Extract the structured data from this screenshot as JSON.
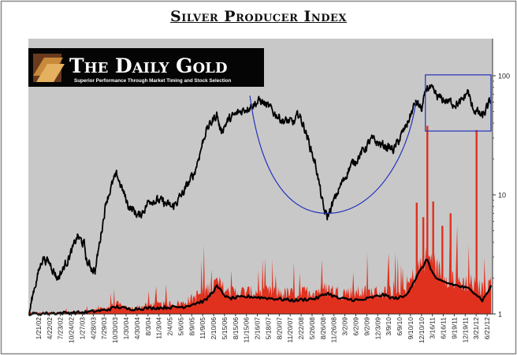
{
  "chart_data": {
    "type": "line",
    "title": "Silver Producer Index",
    "y_scale": "log",
    "ylim": [
      1,
      100
    ],
    "y_ticks": [
      {
        "value": 100,
        "label": "100"
      },
      {
        "value": 10,
        "label": "10"
      },
      {
        "value": 1,
        "label": "1"
      }
    ],
    "x_tick_labels": [
      "1/21/02",
      "4/22/02",
      "7/23/02",
      "10/24/02",
      "1/27/03",
      "4/28/03",
      "7/29/03",
      "10/30/03",
      "1/30/04",
      "4/30/04",
      "8/3/04",
      "11/3/04",
      "2/4/05",
      "5/6/05",
      "8/9/05",
      "11/9/05",
      "2/10/06",
      "5/15/06",
      "8/15/06",
      "11/15/06",
      "2/16/07",
      "5/18/07",
      "8/20/07",
      "11/20/07",
      "2/22/08",
      "5/26/08",
      "8/26/08",
      "11/26/08",
      "3/2/09",
      "6/2/09",
      "9/2/09",
      "12/3/09",
      "3/9/10",
      "6/9/10",
      "9/10/10",
      "12/10/10",
      "3/16/11",
      "6/16/11",
      "9/19/11",
      "12/19/11",
      "3/21/12",
      "6/21/12"
    ],
    "x_range": [
      "1/21/02",
      "8/31/12"
    ],
    "series": [
      {
        "name": "",
        "color": "#000000",
        "style": "price",
        "points": [
          [
            "1/21/02",
            1.0
          ],
          [
            "3/1/02",
            1.6
          ],
          [
            "5/15/02",
            3.0
          ],
          [
            "7/23/02",
            2.6
          ],
          [
            "9/15/02",
            2.0
          ],
          [
            "10/24/02",
            2.3
          ],
          [
            "1/27/03",
            3.6
          ],
          [
            "3/1/03",
            4.5
          ],
          [
            "4/28/03",
            3.8
          ],
          [
            "5/20/03",
            2.7
          ],
          [
            "7/29/03",
            2.3
          ],
          [
            "10/30/03",
            9.0
          ],
          [
            "1/5/04",
            13.5
          ],
          [
            "1/30/04",
            14.5
          ],
          [
            "4/30/04",
            8.2
          ],
          [
            "8/3/04",
            6.6
          ],
          [
            "11/3/04",
            9.2
          ],
          [
            "2/4/05",
            8.8
          ],
          [
            "5/6/05",
            7.8
          ],
          [
            "8/9/05",
            10.5
          ],
          [
            "11/9/05",
            15.5
          ],
          [
            "2/10/06",
            34.0
          ],
          [
            "5/15/06",
            48.0
          ],
          [
            "6/15/06",
            34.0
          ],
          [
            "8/15/06",
            42.0
          ],
          [
            "11/15/06",
            49.0
          ],
          [
            "2/16/07",
            56.0
          ],
          [
            "5/18/07",
            62.0
          ],
          [
            "8/20/07",
            51.0
          ],
          [
            "11/20/07",
            42.0
          ],
          [
            "2/22/08",
            40.0
          ],
          [
            "4/1/08",
            48.0
          ],
          [
            "5/26/08",
            35.0
          ],
          [
            "8/26/08",
            17.0
          ],
          [
            "10/27/08",
            7.5
          ],
          [
            "11/26/08",
            6.5
          ],
          [
            "3/2/09",
            11.0
          ],
          [
            "6/2/09",
            17.0
          ],
          [
            "9/2/09",
            22.0
          ],
          [
            "12/3/09",
            29.0
          ],
          [
            "3/9/10",
            26.0
          ],
          [
            "6/9/10",
            24.0
          ],
          [
            "9/10/10",
            36.0
          ],
          [
            "12/10/10",
            60.0
          ],
          [
            "1/28/11",
            52.0
          ],
          [
            "3/16/11",
            82.0
          ],
          [
            "6/16/11",
            65.0
          ],
          [
            "9/19/11",
            60.0
          ],
          [
            "12/19/11",
            58.0
          ],
          [
            "2/20/12",
            75.0
          ],
          [
            "3/21/12",
            55.0
          ],
          [
            "6/21/12",
            45.0
          ],
          [
            "8/31/12",
            62.0
          ]
        ]
      },
      {
        "name": "",
        "color": "#e0301e",
        "style": "volume",
        "points": [
          [
            "1/21/02",
            1.02
          ],
          [
            "10/24/02",
            1.03
          ],
          [
            "4/28/03",
            1.04
          ],
          [
            "10/30/03",
            1.12
          ],
          [
            "1/30/04",
            1.2
          ],
          [
            "4/30/04",
            1.1
          ],
          [
            "11/3/04",
            1.18
          ],
          [
            "8/9/05",
            1.22
          ],
          [
            "2/10/06",
            1.55
          ],
          [
            "5/15/06",
            1.8
          ],
          [
            "8/15/06",
            1.5
          ],
          [
            "2/16/07",
            1.5
          ],
          [
            "8/20/07",
            1.5
          ],
          [
            "2/22/08",
            1.45
          ],
          [
            "8/26/08",
            1.55
          ],
          [
            "11/26/08",
            1.6
          ],
          [
            "3/2/09",
            1.5
          ],
          [
            "9/2/09",
            1.5
          ],
          [
            "3/9/10",
            1.5
          ],
          [
            "9/10/10",
            1.55
          ],
          [
            "12/10/10",
            2.2
          ],
          [
            "3/16/11",
            3.0
          ],
          [
            "6/16/11",
            2.3
          ],
          [
            "9/19/11",
            2.0
          ],
          [
            "12/19/11",
            1.8
          ],
          [
            "3/21/12",
            1.8
          ],
          [
            "6/21/12",
            1.6
          ],
          [
            "8/31/12",
            1.8
          ]
        ],
        "spikes": [
          [
            "3/16/11",
            38
          ],
          [
            "5/2/12",
            35
          ],
          [
            "12/17/10",
            8.6
          ],
          [
            "5/4/11",
            8.8
          ],
          [
            "9/27/11",
            7.0
          ],
          [
            "2/10/11",
            6.5
          ],
          [
            "7/20/11",
            5.5
          ]
        ]
      },
      {
        "name": "",
        "color": "#000000",
        "style": "average",
        "points": [
          [
            "1/21/02",
            1.0
          ],
          [
            "10/24/02",
            1.02
          ],
          [
            "4/28/03",
            1.03
          ],
          [
            "10/30/03",
            1.08
          ],
          [
            "1/30/04",
            1.15
          ],
          [
            "4/30/04",
            1.1
          ],
          [
            "11/3/04",
            1.12
          ],
          [
            "8/9/05",
            1.15
          ],
          [
            "2/10/06",
            1.3
          ],
          [
            "5/15/06",
            1.7
          ],
          [
            "8/15/06",
            1.35
          ],
          [
            "2/16/07",
            1.4
          ],
          [
            "8/20/07",
            1.35
          ],
          [
            "2/22/08",
            1.3
          ],
          [
            "8/26/08",
            1.35
          ],
          [
            "11/26/08",
            1.5
          ],
          [
            "3/2/09",
            1.35
          ],
          [
            "9/2/09",
            1.3
          ],
          [
            "3/9/10",
            1.45
          ],
          [
            "6/9/10",
            1.35
          ],
          [
            "9/10/10",
            1.4
          ],
          [
            "12/10/10",
            2.0
          ],
          [
            "3/16/11",
            2.9
          ],
          [
            "4/28/11",
            2.2
          ],
          [
            "6/16/11",
            1.9
          ],
          [
            "9/19/11",
            1.8
          ],
          [
            "12/19/11",
            1.7
          ],
          [
            "3/21/12",
            1.6
          ],
          [
            "6/21/12",
            1.3
          ],
          [
            "8/31/12",
            1.7
          ]
        ]
      }
    ],
    "annotations": {
      "curve": {
        "color": "#2233bb",
        "points": [
          [
            "2/16/07",
            68
          ],
          [
            "11/26/08",
            7
          ],
          [
            "12/10/10",
            60
          ]
        ]
      },
      "box": {
        "color": "#2233bb",
        "x": [
          "12/10/10",
          "8/31/12"
        ],
        "y": [
          40,
          90
        ]
      }
    },
    "logo": {
      "title": "The Daily Gold",
      "tagline": "Superior Performance Through  Market Timing and Stock Selection"
    },
    "colors": {
      "plot_bg": "#c8c8c8",
      "frame": "#888888"
    }
  }
}
